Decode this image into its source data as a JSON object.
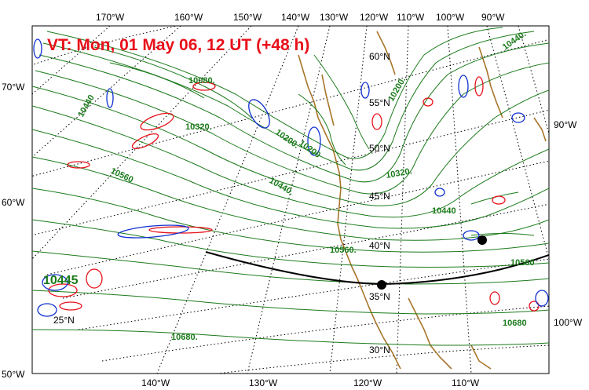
{
  "title": "VT:  Mon, 01 May 06, 12 UT (+48 h)",
  "top_lon_labels": [
    "170°W",
    "160°W",
    "150°W",
    "140°W",
    "130°W",
    "120°W",
    "110°W",
    "100°W",
    "90°W"
  ],
  "bottom_lon_labels": [
    "140°W",
    "130°W",
    "120°W",
    "110°W"
  ],
  "left_labels": [
    "70°W",
    "60°W",
    "50°W"
  ],
  "right_labels": [
    "90°W",
    "100°W"
  ],
  "lat_labels": [
    "60°N",
    "55°N",
    "50°N",
    "45°N",
    "40°N",
    "35°N",
    "30°N",
    "25°N"
  ],
  "contour_labels": [
    "10440.",
    "10080.",
    "10200.",
    "10440",
    "10320.",
    "10560",
    "10200.",
    "10440.",
    "10320.",
    "10440",
    "10560.",
    "10560",
    "10680",
    "10680.",
    "10445",
    "10200"
  ],
  "colors": {
    "title": "#e8101a",
    "height_contours": "#1a7a1a",
    "positive_contours": "#e8101a",
    "negative_contours": "#1030d0",
    "coastline": "#a8752a",
    "graticule": "#000000",
    "track": "#000000"
  }
}
